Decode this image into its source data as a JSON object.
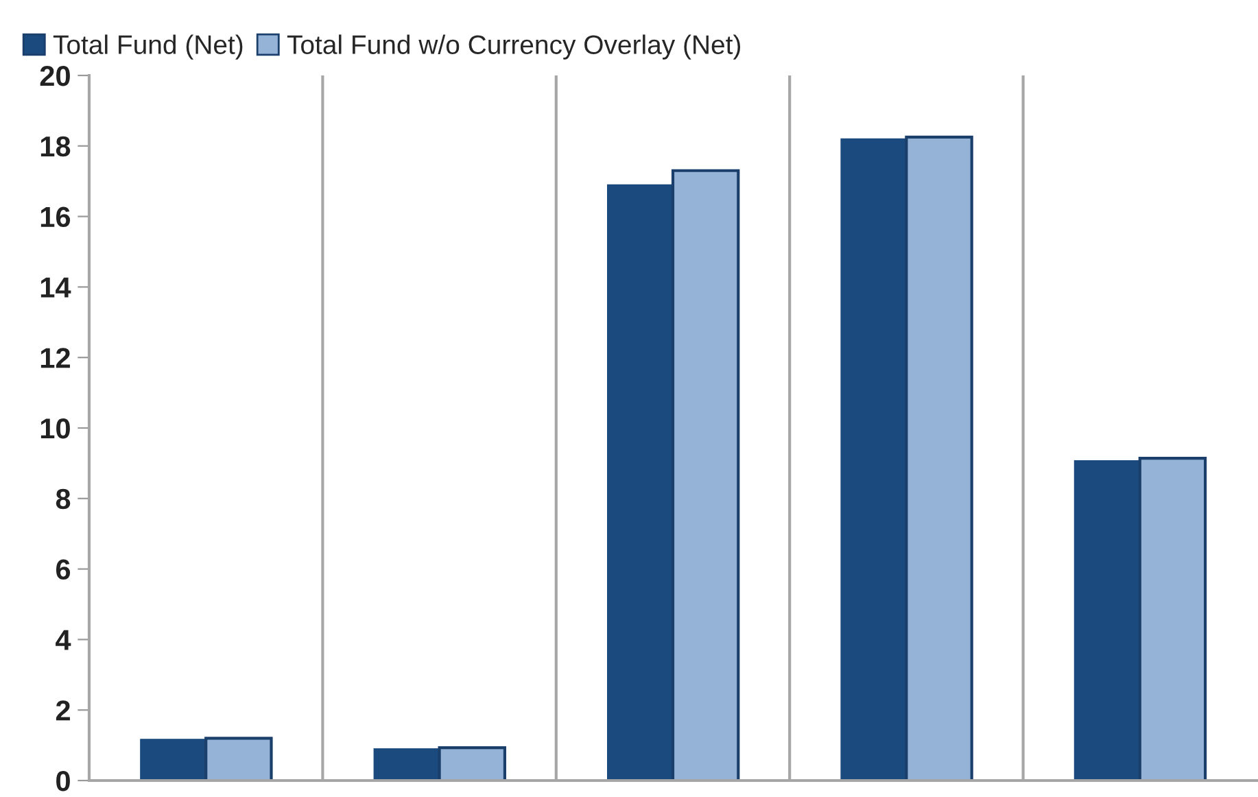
{
  "chart_data": {
    "type": "bar",
    "categories": [
      null,
      null,
      null,
      null,
      null
    ],
    "series": [
      {
        "name": "Total Fund (Net)",
        "color": "#1b4a7e",
        "values": [
          1.17,
          0.9,
          16.9,
          18.2,
          9.07
        ]
      },
      {
        "name": "Total Fund w/o Currency Overlay (Net)",
        "color": "#95b3d7",
        "values": [
          1.2,
          0.93,
          17.3,
          18.25,
          9.14
        ]
      }
    ],
    "ylim": [
      0,
      20
    ],
    "yticks": [
      0,
      2,
      4,
      6,
      8,
      10,
      12,
      14,
      16,
      18,
      20
    ],
    "grid": "x",
    "legend": "top left"
  }
}
